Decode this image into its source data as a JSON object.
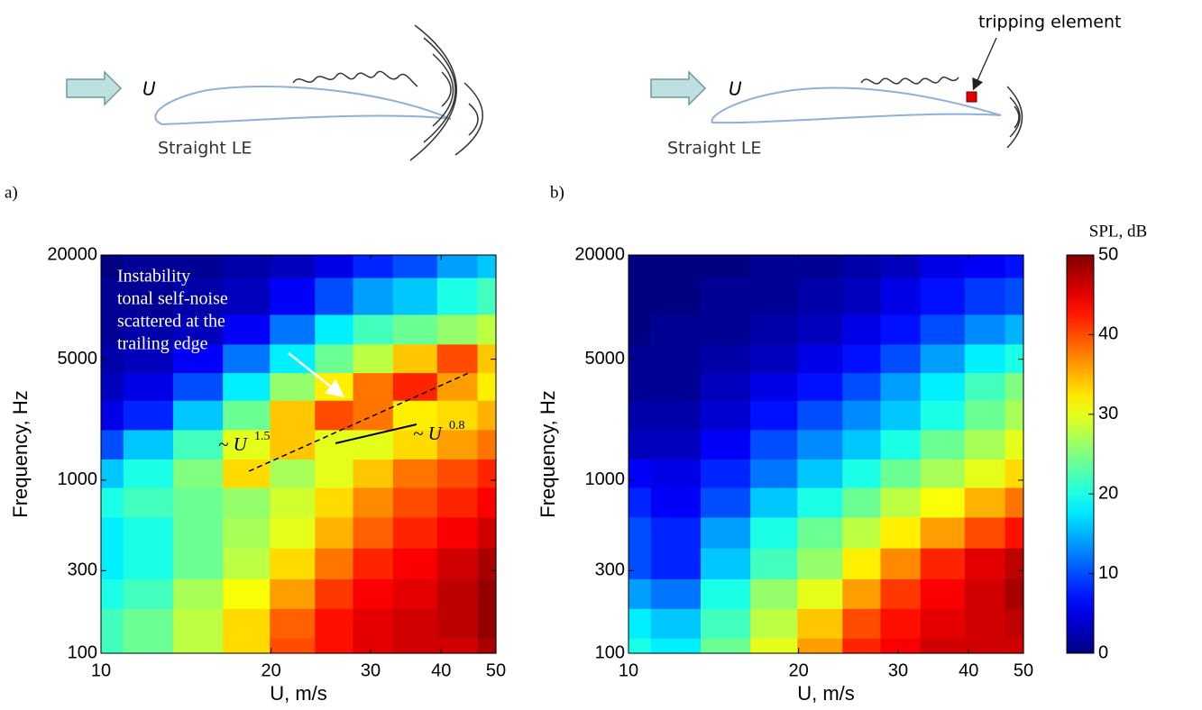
{
  "diagrams": [
    {
      "label": "a)",
      "flow_label": "U",
      "le_label": "Straight LE"
    },
    {
      "label": "b)",
      "flow_label": "U",
      "le_label": "Straight LE",
      "callout": "tripping element"
    }
  ],
  "chart_data": [
    {
      "type": "heatmap",
      "xlabel": "U, m/s",
      "ylabel": "Frequency, Hz",
      "log_x": true,
      "log_y": true,
      "colormap": "jet",
      "clim": [
        0,
        50
      ],
      "xlim": [
        10,
        50
      ],
      "ylim": [
        100,
        20000
      ],
      "xticks": [
        10,
        20,
        30,
        40,
        50
      ],
      "yticks": [
        100,
        300,
        1000,
        5000,
        20000
      ],
      "x": [
        10,
        12,
        15,
        18,
        22,
        26,
        30,
        36,
        43,
        50
      ],
      "y": [
        100,
        150,
        220,
        330,
        500,
        750,
        1100,
        1600,
        2400,
        3500,
        5000,
        7500,
        11000,
        20000
      ],
      "values": [
        [
          22,
          24,
          28,
          33,
          40,
          43,
          45,
          46,
          46,
          48
        ],
        [
          22,
          24,
          28,
          33,
          39,
          43,
          45,
          46,
          47,
          49
        ],
        [
          20,
          22,
          27,
          31,
          36,
          41,
          44,
          45,
          47,
          49
        ],
        [
          18,
          20,
          24,
          28,
          33,
          38,
          42,
          44,
          46,
          48
        ],
        [
          18,
          20,
          24,
          27,
          30,
          35,
          39,
          42,
          44,
          46
        ],
        [
          20,
          22,
          24,
          26,
          29,
          33,
          37,
          40,
          42,
          44
        ],
        [
          16,
          20,
          25,
          33,
          27,
          30,
          34,
          38,
          40,
          42
        ],
        [
          10,
          16,
          22,
          30,
          34,
          30,
          30,
          33,
          36,
          38
        ],
        [
          5,
          8,
          16,
          24,
          34,
          40,
          38,
          32,
          33,
          35
        ],
        [
          3,
          5,
          10,
          18,
          26,
          32,
          38,
          42,
          36,
          32
        ],
        [
          2,
          3,
          6,
          12,
          18,
          24,
          28,
          34,
          40,
          34
        ],
        [
          1,
          2,
          3,
          6,
          12,
          18,
          22,
          24,
          26,
          28
        ],
        [
          1,
          1,
          2,
          3,
          6,
          10,
          14,
          16,
          20,
          22
        ],
        [
          0,
          1,
          1,
          2,
          3,
          5,
          8,
          10,
          14,
          16
        ]
      ],
      "annotation_lines": [
        "Instability",
        "tonal self-noise",
        "scattered at the",
        "trailing edge"
      ],
      "scaling_labels": [
        {
          "text": "~ U",
          "exponent": "1.5"
        },
        {
          "text": "~ U",
          "exponent": "0.8"
        }
      ]
    },
    {
      "type": "heatmap",
      "xlabel": "U, m/s",
      "ylabel": "Frequency, Hz",
      "log_x": true,
      "log_y": true,
      "colormap": "jet",
      "clim": [
        0,
        50
      ],
      "xlim": [
        10,
        50
      ],
      "ylim": [
        100,
        20000
      ],
      "xticks": [
        10,
        20,
        30,
        40,
        50
      ],
      "yticks": [
        100,
        300,
        1000,
        5000,
        20000
      ],
      "x": [
        10,
        12,
        15,
        18,
        22,
        26,
        30,
        36,
        43,
        50
      ],
      "y": [
        100,
        150,
        220,
        330,
        500,
        750,
        1100,
        1600,
        2400,
        3500,
        5000,
        7500,
        11000,
        20000
      ],
      "values": [
        [
          20,
          18,
          24,
          30,
          36,
          42,
          44,
          46,
          46,
          46
        ],
        [
          18,
          16,
          22,
          28,
          34,
          40,
          43,
          45,
          46,
          47
        ],
        [
          14,
          12,
          20,
          26,
          30,
          36,
          41,
          44,
          46,
          48
        ],
        [
          10,
          8,
          16,
          22,
          26,
          32,
          37,
          42,
          45,
          47
        ],
        [
          10,
          8,
          14,
          20,
          24,
          28,
          32,
          36,
          40,
          43
        ],
        [
          8,
          6,
          10,
          16,
          20,
          24,
          28,
          31,
          35,
          38
        ],
        [
          6,
          5,
          8,
          12,
          16,
          20,
          24,
          27,
          30,
          33
        ],
        [
          3,
          3,
          6,
          10,
          13,
          16,
          20,
          24,
          27,
          30
        ],
        [
          2,
          2,
          4,
          7,
          10,
          13,
          16,
          20,
          24,
          27
        ],
        [
          1,
          1,
          3,
          5,
          7,
          10,
          14,
          18,
          22,
          25
        ],
        [
          1,
          1,
          2,
          3,
          5,
          7,
          10,
          14,
          18,
          20
        ],
        [
          0,
          1,
          1,
          2,
          3,
          5,
          7,
          10,
          13,
          15
        ],
        [
          0,
          0,
          1,
          1,
          2,
          3,
          5,
          7,
          9,
          10
        ],
        [
          0,
          0,
          0,
          1,
          1,
          2,
          3,
          5,
          6,
          7
        ]
      ]
    }
  ],
  "colorbar": {
    "label": "SPL, dB",
    "lim": [
      0,
      50
    ],
    "ticks": [
      0,
      10,
      20,
      30,
      40,
      50
    ]
  }
}
